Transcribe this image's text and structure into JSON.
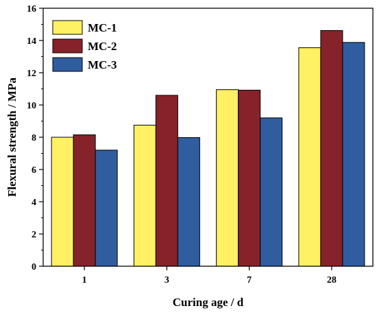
{
  "chart_data": {
    "type": "bar",
    "xlabel": "Curing age / d",
    "ylabel": "Flexural strength / MPa",
    "categories": [
      "1",
      "3",
      "7",
      "28"
    ],
    "ylim": [
      0,
      16
    ],
    "yticks": [
      0,
      2,
      4,
      6,
      8,
      10,
      12,
      14,
      16
    ],
    "ytick_labels": [
      "0",
      "2",
      "4",
      "6",
      "8",
      "10",
      "12",
      "14",
      "16"
    ],
    "legend_position": "top-left",
    "grid": false,
    "series": [
      {
        "name": "MC-1",
        "color": "#FFF064",
        "values": [
          8.0,
          8.75,
          10.95,
          13.55
        ]
      },
      {
        "name": "MC-2",
        "color": "#86232A",
        "values": [
          8.15,
          10.6,
          10.92,
          14.62
        ]
      },
      {
        "name": "MC-3",
        "color": "#2F5D9F",
        "values": [
          7.2,
          7.98,
          9.2,
          13.88
        ]
      }
    ]
  }
}
